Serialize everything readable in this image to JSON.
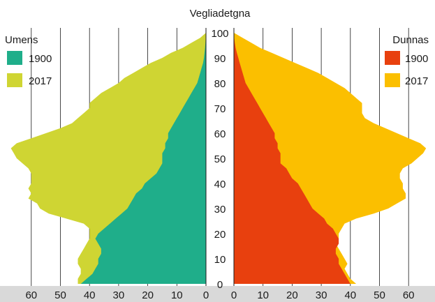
{
  "chart_data": {
    "type": "area",
    "title": "Vegliadetgna",
    "y_ticks": [
      "0",
      "10",
      "20",
      "30",
      "40",
      "50",
      "60",
      "70",
      "80",
      "90",
      "100"
    ],
    "x_ticks_left": [
      "60",
      "50",
      "40",
      "30",
      "20",
      "10",
      "0"
    ],
    "x_ticks_right": [
      "0",
      "10",
      "20",
      "30",
      "40",
      "50",
      "60"
    ],
    "xlim": [
      0,
      68
    ],
    "ylim": [
      0,
      100
    ],
    "grid": "vertical",
    "males": {
      "label": "Umens",
      "series": [
        {
          "name": "1900",
          "color": "#1fae8a",
          "ages": [
            0,
            2,
            4,
            6,
            8,
            10,
            12,
            14,
            16,
            18,
            20,
            22,
            24,
            26,
            28,
            30,
            32,
            34,
            36,
            38,
            40,
            42,
            44,
            46,
            48,
            50,
            52,
            54,
            56,
            58,
            60,
            62,
            64,
            66,
            68,
            70,
            72,
            74,
            76,
            78,
            80,
            82,
            84,
            86,
            88,
            90,
            92,
            94,
            96,
            98,
            100
          ],
          "values": [
            43,
            41,
            39,
            38,
            37,
            37,
            36,
            36,
            37,
            38,
            37,
            35,
            33,
            31,
            29,
            27,
            26,
            25,
            24,
            22,
            21,
            19,
            17,
            16,
            15,
            15,
            15,
            14,
            14,
            13,
            13,
            12,
            11,
            10,
            9,
            8,
            7,
            6,
            5,
            4,
            3,
            2.5,
            2,
            1.5,
            1,
            0.7,
            0.5,
            0.3,
            0.2,
            0.1,
            0
          ]
        },
        {
          "name": "2017",
          "color": "#cfd533",
          "ages": [
            0,
            2,
            4,
            6,
            8,
            10,
            12,
            14,
            16,
            18,
            20,
            22,
            24,
            26,
            28,
            30,
            32,
            34,
            36,
            38,
            40,
            42,
            44,
            46,
            48,
            50,
            52,
            54,
            56,
            58,
            60,
            62,
            64,
            66,
            68,
            70,
            72,
            74,
            76,
            78,
            80,
            82,
            84,
            86,
            88,
            90,
            92,
            94,
            96,
            98,
            100
          ],
          "values": [
            44,
            44,
            43,
            43,
            44,
            44,
            43,
            42,
            41,
            40,
            40,
            40,
            42,
            48,
            54,
            57,
            58,
            61,
            60,
            61,
            60,
            60,
            60,
            61,
            63,
            65,
            66,
            67,
            65,
            60,
            55,
            50,
            46,
            44,
            42,
            40,
            40,
            38,
            36,
            33,
            30,
            28,
            25,
            22,
            19,
            15,
            12,
            8,
            5,
            2,
            0
          ]
        }
      ]
    },
    "females": {
      "label": "Dunnas",
      "series": [
        {
          "name": "1900",
          "color": "#e8400e",
          "ages": [
            0,
            2,
            4,
            6,
            8,
            10,
            12,
            14,
            16,
            18,
            20,
            22,
            24,
            26,
            28,
            30,
            32,
            34,
            36,
            38,
            40,
            42,
            44,
            46,
            48,
            50,
            52,
            54,
            56,
            58,
            60,
            62,
            64,
            66,
            68,
            70,
            72,
            74,
            76,
            78,
            80,
            82,
            84,
            86,
            88,
            90,
            92,
            94,
            96,
            98,
            100
          ],
          "values": [
            40,
            39,
            38,
            37,
            36,
            36,
            35,
            35,
            36,
            36,
            35,
            34,
            32,
            31,
            29,
            27,
            26,
            25,
            24,
            23,
            22,
            20,
            19,
            18,
            16,
            16,
            16,
            15,
            15,
            14,
            14,
            13,
            12,
            11,
            10,
            9,
            8,
            7,
            6,
            5,
            4,
            3.5,
            3,
            2.5,
            2,
            1.5,
            1,
            0.6,
            0.3,
            0.1,
            0
          ]
        },
        {
          "name": "2017",
          "color": "#fbbf00",
          "ages": [
            0,
            2,
            4,
            6,
            8,
            10,
            12,
            14,
            16,
            18,
            20,
            22,
            24,
            26,
            28,
            30,
            32,
            34,
            36,
            38,
            40,
            42,
            44,
            46,
            48,
            50,
            52,
            54,
            56,
            58,
            60,
            62,
            64,
            66,
            68,
            70,
            72,
            74,
            76,
            78,
            80,
            82,
            84,
            86,
            88,
            90,
            92,
            94,
            96,
            98,
            100
          ],
          "values": [
            42,
            40,
            39,
            38,
            39,
            38,
            37,
            36,
            35,
            36,
            36,
            37,
            38,
            42,
            48,
            53,
            56,
            59,
            59,
            58,
            58,
            57,
            57,
            58,
            61,
            63,
            65,
            66,
            64,
            60,
            56,
            52,
            48,
            45,
            44,
            44,
            44,
            42,
            40,
            38,
            35,
            32,
            29,
            25,
            21,
            17,
            13,
            9,
            6,
            3,
            0
          ]
        }
      ]
    }
  }
}
